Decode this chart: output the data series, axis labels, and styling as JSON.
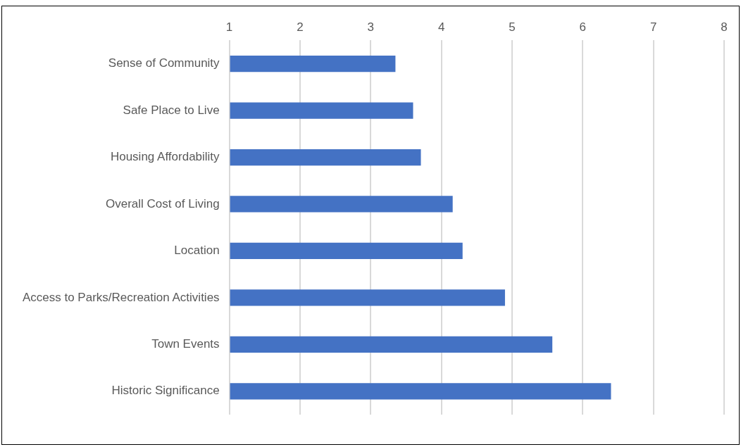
{
  "chart_data": {
    "type": "bar",
    "orientation": "horizontal",
    "categories": [
      "Sense of Community",
      "Safe Place to Live",
      "Housing Affordability",
      "Overall Cost of Living",
      "Location",
      "Access to Parks/Recreation Activities",
      "Town Events",
      "Historic Significance"
    ],
    "values": [
      3.35,
      3.6,
      3.71,
      4.16,
      4.3,
      4.9,
      5.57,
      6.4
    ],
    "color": "#4472c4",
    "xlim": [
      1,
      8
    ],
    "xticks": [
      1,
      2,
      3,
      4,
      5,
      6,
      7,
      8
    ],
    "grid": "x",
    "legend": false
  }
}
